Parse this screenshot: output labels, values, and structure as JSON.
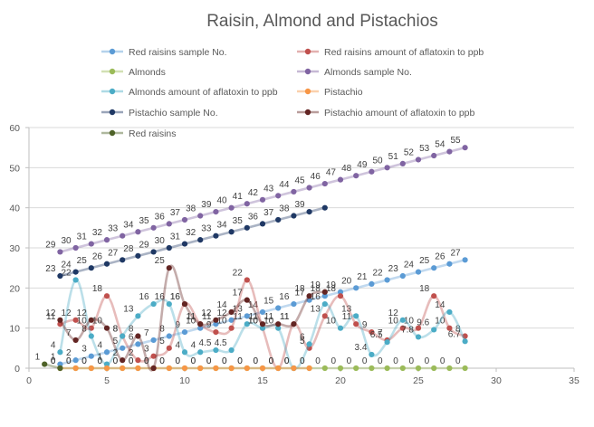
{
  "chart_data": {
    "type": "scatter",
    "title": "Raisin, Almond and Pistachios",
    "xlim": [
      0,
      35
    ],
    "ylim": [
      0,
      60
    ],
    "x_ticks": [
      0,
      5,
      10,
      15,
      20,
      25,
      30,
      35
    ],
    "y_ticks": [
      0,
      10,
      20,
      30,
      40,
      50,
      60
    ],
    "grid": "horizontal",
    "legend_position": "top",
    "series": [
      {
        "name": "Red raisins sample No.",
        "color": "#5B9BD5",
        "smooth": true,
        "x": [
          2,
          3,
          4,
          5,
          6,
          7,
          8,
          9,
          10,
          11,
          12,
          13,
          14,
          15,
          16,
          17,
          18,
          19,
          20,
          21,
          22,
          23,
          24,
          25,
          26,
          27,
          28
        ],
        "y": [
          1,
          2,
          3,
          4,
          5,
          6,
          7,
          8,
          9,
          10,
          11,
          12,
          13,
          14,
          15,
          16,
          17,
          18,
          19,
          20,
          21,
          22,
          23,
          24,
          25,
          26,
          27
        ],
        "labels": [
          "1",
          "2",
          "3",
          "4",
          "5",
          "6",
          "7",
          "8",
          "9",
          "10",
          "11",
          "12",
          "13",
          "14",
          "15",
          "16",
          "17",
          "18",
          "19",
          "20",
          "21",
          "22",
          "23",
          "24",
          "25",
          "26",
          "27"
        ]
      },
      {
        "name": "Red raisins amount of aflatoxin to ppb",
        "color": "#C0504D",
        "smooth": true,
        "x": [
          2,
          3,
          4,
          5,
          6,
          7,
          8,
          9,
          10,
          11,
          12,
          13,
          14,
          15,
          16,
          17,
          18,
          19,
          20,
          21,
          22,
          23,
          24,
          25,
          26,
          27,
          28
        ],
        "y": [
          11,
          12,
          10,
          18,
          8,
          2,
          3,
          5,
          16,
          11,
          9,
          10,
          22,
          10,
          0,
          11,
          5,
          13,
          18,
          11,
          9,
          7,
          10,
          10,
          18,
          10,
          8
        ],
        "labels": [
          "11",
          "12",
          "10",
          "18",
          "8",
          "2",
          "3",
          "5",
          "16",
          "11",
          "9",
          "10",
          "22",
          "10",
          "0",
          "11",
          "5",
          "13",
          "18",
          "11",
          "9",
          "7",
          "10",
          "10",
          "18",
          "10",
          "8"
        ]
      },
      {
        "name": "Almonds",
        "color": "#9BBB59",
        "smooth": false,
        "x": [
          2,
          3,
          4,
          5,
          6,
          7,
          8,
          9,
          10,
          11,
          12,
          13,
          14,
          15,
          16,
          17,
          18,
          19,
          20,
          21,
          22,
          23,
          24,
          25,
          26,
          27,
          28
        ],
        "y": [
          0,
          0,
          0,
          0,
          0,
          0,
          0,
          0,
          0,
          0,
          0,
          0,
          0,
          0,
          0,
          0,
          0,
          0,
          0,
          0,
          0,
          0,
          0,
          0,
          0,
          0,
          0
        ],
        "labels": [
          "0",
          "0",
          "0",
          "0",
          "0",
          "0",
          "0",
          "0",
          "0",
          "0",
          "0",
          "0",
          "0",
          "0",
          "0",
          "0",
          "0",
          "0",
          "0",
          "0",
          "0",
          "0",
          "0",
          "0",
          "0",
          "0",
          "0"
        ]
      },
      {
        "name": "Almonds sample No.",
        "color": "#8064A2",
        "smooth": false,
        "x": [
          2,
          3,
          4,
          5,
          6,
          7,
          8,
          9,
          10,
          11,
          12,
          13,
          14,
          15,
          16,
          17,
          18,
          19,
          20,
          21,
          22,
          23,
          24,
          25,
          26,
          27,
          28
        ],
        "y": [
          29,
          30,
          31,
          32,
          33,
          34,
          35,
          36,
          37,
          38,
          39,
          40,
          41,
          42,
          43,
          44,
          45,
          46,
          47,
          48,
          49,
          50,
          51,
          52,
          53,
          54,
          55
        ],
        "labels": [
          "29",
          "30",
          "31",
          "32",
          "33",
          "34",
          "35",
          "36",
          "37",
          "38",
          "39",
          "40",
          "41",
          "42",
          "43",
          "44",
          "45",
          "46",
          "47",
          "48",
          "49",
          "50",
          "51",
          "52",
          "53",
          "54",
          "55"
        ]
      },
      {
        "name": "Almonds amount of aflatoxin to ppb",
        "color": "#4BACC6",
        "smooth": true,
        "x": [
          2,
          3,
          4,
          5,
          6,
          7,
          8,
          9,
          10,
          11,
          12,
          13,
          14,
          15,
          16,
          17,
          18,
          19,
          20,
          21,
          22,
          23,
          24,
          25,
          26,
          27,
          28
        ],
        "y": [
          4,
          22,
          8,
          1,
          8,
          13,
          16,
          16,
          4,
          4,
          4.5,
          4.5,
          11,
          10,
          10,
          0,
          6,
          16,
          10,
          13,
          3.4,
          6.5,
          12,
          7.8,
          9.6,
          14,
          6.7
        ],
        "labels": [
          "4",
          "22",
          "8",
          "1",
          "8",
          "13",
          "16",
          "16",
          "4",
          "4",
          "4.5",
          "4.5",
          "11",
          "10",
          "10",
          "0",
          "6",
          "16",
          "10",
          "13",
          "3.4",
          "6.5",
          "12",
          "7.8",
          "9.6",
          "14",
          "6.7"
        ]
      },
      {
        "name": "Pistachio",
        "color": "#F79646",
        "smooth": false,
        "x": [
          2,
          3,
          4,
          5,
          6,
          7,
          8,
          9,
          10,
          11,
          12,
          13,
          14,
          15,
          16,
          17,
          18
        ],
        "y": [
          0,
          0,
          0,
          0,
          0,
          0,
          0,
          0,
          0,
          0,
          0,
          0,
          0,
          0,
          0,
          0,
          0
        ],
        "labels": [
          "0",
          "0",
          "0",
          "0",
          "0",
          "0",
          "0",
          "0",
          "0",
          "0",
          "0",
          "0",
          "0",
          "0",
          "0",
          "0",
          "0"
        ]
      },
      {
        "name": "Pistachio sample No.",
        "color": "#1F3864",
        "smooth": false,
        "x": [
          2,
          3,
          4,
          5,
          6,
          7,
          8,
          9,
          10,
          11,
          12,
          13,
          14,
          15,
          16,
          17,
          18,
          19
        ],
        "y": [
          23,
          24,
          25,
          26,
          27,
          28,
          29,
          30,
          31,
          32,
          33,
          34,
          35,
          36,
          37,
          38,
          39,
          40
        ],
        "labels": [
          "23",
          "24",
          "25",
          "26",
          "27",
          "28",
          "29",
          "30",
          "31",
          "32",
          "33",
          "34",
          "35",
          "36",
          "37",
          "38",
          "39",
          ""
        ]
      },
      {
        "name": "Pistachio amount of aflatoxin to ppb",
        "color": "#632523",
        "smooth": true,
        "x": [
          2,
          3,
          4,
          5,
          6,
          7,
          8,
          9,
          10,
          11,
          12,
          13,
          14,
          15,
          16,
          17,
          18,
          19
        ],
        "y": [
          12,
          7,
          12,
          10,
          2,
          8,
          0,
          25,
          16,
          11,
          12,
          14,
          17,
          11,
          11,
          11,
          18,
          19
        ],
        "labels": [
          "12",
          "7",
          "12",
          "10",
          "2",
          "8",
          "0",
          "25",
          "16",
          "11",
          "12",
          "14",
          "17",
          "11",
          "11",
          "11",
          "18",
          "19"
        ]
      },
      {
        "name": "Red raisins",
        "color": "#4E6228",
        "smooth": false,
        "x": [
          1,
          2
        ],
        "y": [
          1,
          0
        ],
        "labels": [
          "1",
          "0"
        ]
      }
    ]
  }
}
